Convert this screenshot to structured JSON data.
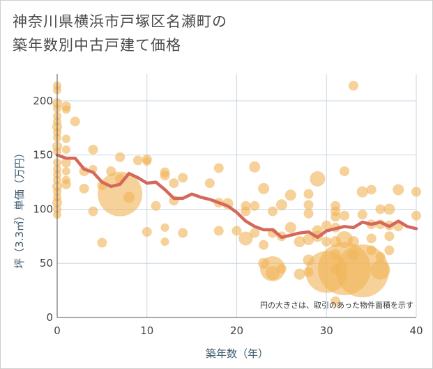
{
  "chart_data": {
    "type": "scatter",
    "title_lines": [
      "神奈川県横浜市戸塚区名瀬町の",
      "築年数別中古戸建て価格"
    ],
    "xlabel": "築年数（年）",
    "ylabel": "坪（3.3㎡）単価（万円）",
    "note": "円の大きさは、取引のあった物件面積を示す",
    "xlim": [
      0,
      40
    ],
    "ylim": [
      0,
      225
    ],
    "xticks": [
      0,
      10,
      20,
      30,
      40
    ],
    "yticks": [
      0,
      50,
      100,
      150,
      200
    ],
    "grid": true,
    "colors": {
      "bubble": "#f0b55a",
      "line": "#d4685a",
      "grid": "#c9d7e2",
      "axis": "#555555"
    },
    "trend_line": {
      "x": [
        0,
        1,
        2,
        3,
        4,
        5,
        6,
        7,
        8,
        9,
        10,
        11,
        12,
        13,
        14,
        15,
        16,
        17,
        18,
        19,
        20,
        21,
        22,
        23,
        24,
        25,
        26,
        27,
        28,
        29,
        30,
        31,
        32,
        33,
        34,
        35,
        36,
        37,
        38,
        39,
        40
      ],
      "y": [
        150,
        147,
        147,
        137,
        134,
        125,
        121,
        123,
        133,
        129,
        124,
        125,
        118,
        110,
        110,
        114,
        111,
        109,
        106,
        103,
        97,
        89,
        84,
        81,
        81,
        74,
        76,
        78,
        79,
        74,
        80,
        82,
        84,
        83,
        88,
        86,
        88,
        84,
        89,
        84,
        82
      ]
    },
    "points": [
      {
        "x": 0,
        "y": 214,
        "s": 6
      },
      {
        "x": 0,
        "y": 210,
        "s": 6
      },
      {
        "x": 0,
        "y": 198,
        "s": 7
      },
      {
        "x": 0,
        "y": 193,
        "s": 6
      },
      {
        "x": 0,
        "y": 186,
        "s": 6
      },
      {
        "x": 0,
        "y": 181,
        "s": 6
      },
      {
        "x": 0,
        "y": 176,
        "s": 7
      },
      {
        "x": 0,
        "y": 171,
        "s": 6
      },
      {
        "x": 0,
        "y": 166,
        "s": 6
      },
      {
        "x": 0,
        "y": 158,
        "s": 7
      },
      {
        "x": 0,
        "y": 153,
        "s": 6
      },
      {
        "x": 0,
        "y": 143,
        "s": 6
      },
      {
        "x": 0,
        "y": 137,
        "s": 6
      },
      {
        "x": 0,
        "y": 132,
        "s": 6
      },
      {
        "x": 0,
        "y": 127,
        "s": 6
      },
      {
        "x": 0,
        "y": 121,
        "s": 7
      },
      {
        "x": 0,
        "y": 116,
        "s": 6
      },
      {
        "x": 0,
        "y": 111,
        "s": 6
      },
      {
        "x": 0,
        "y": 106,
        "s": 7
      },
      {
        "x": 0,
        "y": 100,
        "s": 6
      },
      {
        "x": 0,
        "y": 95,
        "s": 6
      },
      {
        "x": 1,
        "y": 195,
        "s": 7
      },
      {
        "x": 1,
        "y": 192,
        "s": 6
      },
      {
        "x": 1,
        "y": 165,
        "s": 6
      },
      {
        "x": 1,
        "y": 155,
        "s": 6
      },
      {
        "x": 1,
        "y": 143,
        "s": 7
      },
      {
        "x": 1,
        "y": 135,
        "s": 6
      },
      {
        "x": 1,
        "y": 127,
        "s": 6
      },
      {
        "x": 1,
        "y": 123,
        "s": 7
      },
      {
        "x": 2,
        "y": 181,
        "s": 7
      },
      {
        "x": 3,
        "y": 135,
        "s": 7
      },
      {
        "x": 3,
        "y": 119,
        "s": 7
      },
      {
        "x": 4,
        "y": 155,
        "s": 7
      },
      {
        "x": 4,
        "y": 137,
        "s": 6
      },
      {
        "x": 4,
        "y": 98,
        "s": 7
      },
      {
        "x": 5,
        "y": 122,
        "s": 7
      },
      {
        "x": 5,
        "y": 69,
        "s": 7
      },
      {
        "x": 6,
        "y": 135,
        "s": 7
      },
      {
        "x": 7,
        "y": 148,
        "s": 7
      },
      {
        "x": 7,
        "y": 128,
        "s": 7
      },
      {
        "x": 7,
        "y": 114,
        "s": 32
      },
      {
        "x": 8,
        "y": 111,
        "s": 8
      },
      {
        "x": 9,
        "y": 145,
        "s": 7
      },
      {
        "x": 10,
        "y": 146,
        "s": 7
      },
      {
        "x": 10,
        "y": 144,
        "s": 6
      },
      {
        "x": 10,
        "y": 79,
        "s": 7
      },
      {
        "x": 11,
        "y": 103,
        "s": 7
      },
      {
        "x": 12,
        "y": 134,
        "s": 7
      },
      {
        "x": 12,
        "y": 131,
        "s": 7
      },
      {
        "x": 12,
        "y": 83,
        "s": 6
      },
      {
        "x": 12,
        "y": 70,
        "s": 6
      },
      {
        "x": 13,
        "y": 124,
        "s": 7
      },
      {
        "x": 13,
        "y": 108,
        "s": 7
      },
      {
        "x": 14,
        "y": 129,
        "s": 7
      },
      {
        "x": 14,
        "y": 78,
        "s": 7
      },
      {
        "x": 17,
        "y": 124,
        "s": 7
      },
      {
        "x": 18,
        "y": 138,
        "s": 7
      },
      {
        "x": 18,
        "y": 106,
        "s": 7
      },
      {
        "x": 18,
        "y": 80,
        "s": 7
      },
      {
        "x": 19,
        "y": 105,
        "s": 8
      },
      {
        "x": 20,
        "y": 80,
        "s": 7
      },
      {
        "x": 21,
        "y": 103,
        "s": 7
      },
      {
        "x": 21,
        "y": 98,
        "s": 7
      },
      {
        "x": 21,
        "y": 73,
        "s": 10
      },
      {
        "x": 22,
        "y": 139,
        "s": 8
      },
      {
        "x": 22,
        "y": 103,
        "s": 7
      },
      {
        "x": 22,
        "y": 78,
        "s": 7
      },
      {
        "x": 23,
        "y": 119,
        "s": 8
      },
      {
        "x": 23,
        "y": 67,
        "s": 7
      },
      {
        "x": 23,
        "y": 50,
        "s": 8
      },
      {
        "x": 24,
        "y": 98,
        "s": 7
      },
      {
        "x": 24,
        "y": 78,
        "s": 7
      },
      {
        "x": 24,
        "y": 45,
        "s": 18
      },
      {
        "x": 24,
        "y": 41,
        "s": 10
      },
      {
        "x": 25,
        "y": 104,
        "s": 8
      },
      {
        "x": 25,
        "y": 75,
        "s": 7
      },
      {
        "x": 25,
        "y": 45,
        "s": 7
      },
      {
        "x": 26,
        "y": 83,
        "s": 8
      },
      {
        "x": 26,
        "y": 113,
        "s": 8
      },
      {
        "x": 27,
        "y": 70,
        "s": 8
      },
      {
        "x": 27,
        "y": 40,
        "s": 8
      },
      {
        "x": 28,
        "y": 114,
        "s": 7
      },
      {
        "x": 28,
        "y": 104,
        "s": 7
      },
      {
        "x": 28,
        "y": 96,
        "s": 7
      },
      {
        "x": 28,
        "y": 72,
        "s": 8
      },
      {
        "x": 28,
        "y": 53,
        "s": 8
      },
      {
        "x": 28,
        "y": 42,
        "s": 7
      },
      {
        "x": 29,
        "y": 128,
        "s": 11
      },
      {
        "x": 29,
        "y": 80,
        "s": 8
      },
      {
        "x": 29,
        "y": 75,
        "s": 8
      },
      {
        "x": 30,
        "y": 85,
        "s": 7
      },
      {
        "x": 30,
        "y": 70,
        "s": 7
      },
      {
        "x": 30,
        "y": 42,
        "s": 30
      },
      {
        "x": 31,
        "y": 103,
        "s": 7
      },
      {
        "x": 31,
        "y": 98,
        "s": 7
      },
      {
        "x": 31,
        "y": 93,
        "s": 7
      },
      {
        "x": 31,
        "y": 83,
        "s": 7
      },
      {
        "x": 31,
        "y": 70,
        "s": 8
      },
      {
        "x": 31,
        "y": 58,
        "s": 8
      },
      {
        "x": 31,
        "y": 45,
        "s": 7
      },
      {
        "x": 31,
        "y": 15,
        "s": 7
      },
      {
        "x": 32,
        "y": 135,
        "s": 7
      },
      {
        "x": 32,
        "y": 94,
        "s": 7
      },
      {
        "x": 32,
        "y": 72,
        "s": 12
      },
      {
        "x": 32,
        "y": 45,
        "s": 38
      },
      {
        "x": 33,
        "y": 214,
        "s": 7
      },
      {
        "x": 33,
        "y": 70,
        "s": 8
      },
      {
        "x": 33,
        "y": 58,
        "s": 8
      },
      {
        "x": 34,
        "y": 116,
        "s": 8
      },
      {
        "x": 34,
        "y": 95,
        "s": 7
      },
      {
        "x": 34,
        "y": 43,
        "s": 38
      },
      {
        "x": 35,
        "y": 118,
        "s": 7
      },
      {
        "x": 35,
        "y": 86,
        "s": 7
      },
      {
        "x": 35,
        "y": 73,
        "s": 7
      },
      {
        "x": 35,
        "y": 62,
        "s": 7
      },
      {
        "x": 36,
        "y": 100,
        "s": 7
      },
      {
        "x": 36,
        "y": 86,
        "s": 7
      },
      {
        "x": 36,
        "y": 56,
        "s": 7
      },
      {
        "x": 36,
        "y": 44,
        "s": 14
      },
      {
        "x": 37,
        "y": 100,
        "s": 8
      },
      {
        "x": 37,
        "y": 85,
        "s": 7
      },
      {
        "x": 37,
        "y": 75,
        "s": 7
      },
      {
        "x": 37,
        "y": 62,
        "s": 7
      },
      {
        "x": 38,
        "y": 118,
        "s": 8
      },
      {
        "x": 38,
        "y": 84,
        "s": 7
      },
      {
        "x": 40,
        "y": 116,
        "s": 7
      },
      {
        "x": 40,
        "y": 94,
        "s": 7
      }
    ]
  }
}
